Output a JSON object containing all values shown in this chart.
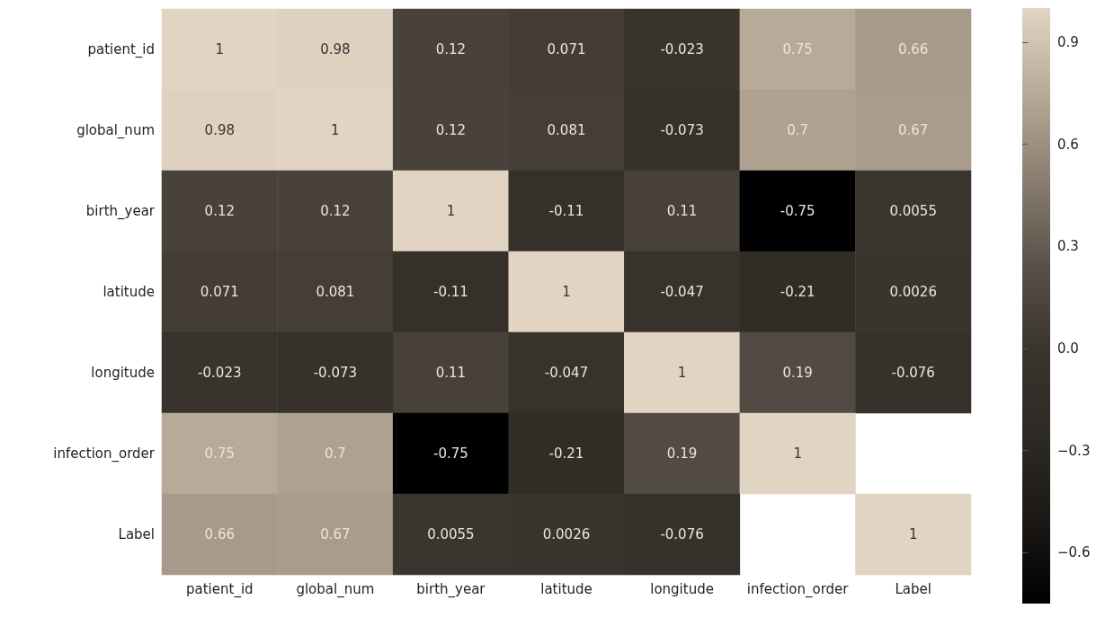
{
  "chart_data": {
    "type": "heatmap",
    "categories": [
      "patient_id",
      "global_num",
      "birth_year",
      "latitude",
      "longitude",
      "infection_order",
      "Label"
    ],
    "y_categories": [
      "patient_id",
      "global_num",
      "birth_year",
      "latitude",
      "longitude",
      "infection_order",
      "Label"
    ],
    "cells": [
      [
        1,
        0.98,
        0.12,
        0.071,
        -0.023,
        0.75,
        0.66
      ],
      [
        0.98,
        1,
        0.12,
        0.081,
        -0.073,
        0.7,
        0.67
      ],
      [
        0.12,
        0.12,
        1,
        -0.11,
        0.11,
        -0.75,
        0.0055
      ],
      [
        0.071,
        0.081,
        -0.11,
        1,
        -0.047,
        -0.21,
        0.0026
      ],
      [
        -0.023,
        -0.073,
        0.11,
        -0.047,
        1,
        0.19,
        -0.076
      ],
      [
        0.75,
        0.7,
        -0.75,
        -0.21,
        0.19,
        1,
        null
      ],
      [
        0.66,
        0.67,
        0.0055,
        0.0026,
        -0.076,
        null,
        1
      ]
    ],
    "clim": [
      -0.75,
      1
    ],
    "cticks": [
      {
        "value": 0.9,
        "label": "0.9"
      },
      {
        "value": 0.6,
        "label": "0.6"
      },
      {
        "value": 0.3,
        "label": "0.3"
      },
      {
        "value": 0.0,
        "label": "0.0"
      },
      {
        "value": -0.3,
        "label": "−0.3"
      },
      {
        "value": -0.6,
        "label": "−0.6"
      }
    ],
    "data_labels": true
  }
}
